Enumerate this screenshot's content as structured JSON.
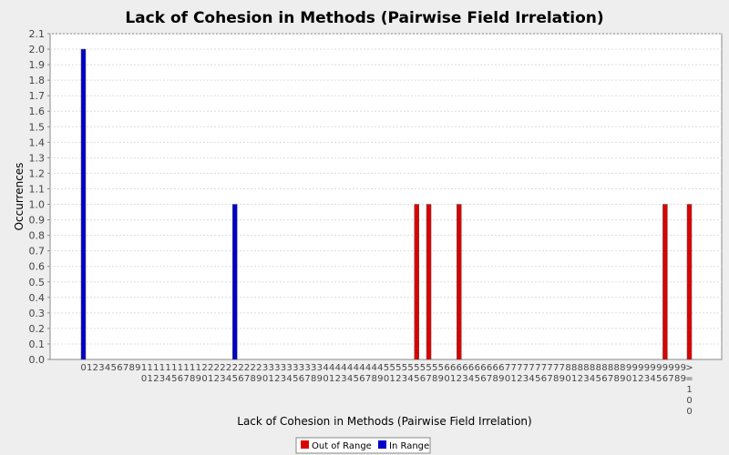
{
  "chart_data": {
    "type": "bar",
    "title": "Lack of Cohesion in Methods (Pairwise Field Irrelation)",
    "xlabel": "Lack of Cohesion in Methods (Pairwise Field Irrelation)",
    "ylabel": "Occurrences",
    "ylim": [
      0,
      2.1
    ],
    "yticks": [
      "0.0",
      "0.1",
      "0.2",
      "0.3",
      "0.4",
      "0.5",
      "0.6",
      "0.7",
      "0.8",
      "0.9",
      "1.0",
      "1.1",
      "1.2",
      "1.3",
      "1.4",
      "1.5",
      "1.6",
      "1.7",
      "1.8",
      "1.9",
      "2.0",
      "2.1"
    ],
    "categories": [
      "0",
      "1",
      "2",
      "3",
      "4",
      "5",
      "6",
      "7",
      "8",
      "9",
      "10",
      "11",
      "12",
      "13",
      "14",
      "15",
      "16",
      "17",
      "18",
      "19",
      "20",
      "21",
      "22",
      "23",
      "24",
      "25",
      "26",
      "27",
      "28",
      "29",
      "30",
      "31",
      "32",
      "33",
      "34",
      "35",
      "36",
      "37",
      "38",
      "39",
      "40",
      "41",
      "42",
      "43",
      "44",
      "45",
      "46",
      "47",
      "48",
      "49",
      "50",
      "51",
      "52",
      "53",
      "54",
      "55",
      "56",
      "57",
      "58",
      "59",
      "60",
      "61",
      "62",
      "63",
      "64",
      "65",
      "66",
      "67",
      "68",
      "69",
      "70",
      "71",
      "72",
      "73",
      "74",
      "75",
      "76",
      "77",
      "78",
      "79",
      "80",
      "81",
      "82",
      "83",
      "84",
      "85",
      "86",
      "87",
      "88",
      "89",
      "90",
      "91",
      "92",
      "93",
      "94",
      "95",
      "96",
      "97",
      "98",
      "99",
      ">=100"
    ],
    "series": [
      {
        "name": "Out of Range",
        "color": "#dd0000",
        "values": [
          0,
          0,
          0,
          0,
          0,
          0,
          0,
          0,
          0,
          0,
          0,
          0,
          0,
          0,
          0,
          0,
          0,
          0,
          0,
          0,
          0,
          0,
          0,
          0,
          0,
          0,
          0,
          0,
          0,
          0,
          0,
          0,
          0,
          0,
          0,
          0,
          0,
          0,
          0,
          0,
          0,
          0,
          0,
          0,
          0,
          0,
          0,
          0,
          0,
          0,
          0,
          0,
          0,
          0,
          0,
          1,
          0,
          1,
          0,
          0,
          0,
          0,
          1,
          0,
          0,
          0,
          0,
          0,
          0,
          0,
          0,
          0,
          0,
          0,
          0,
          0,
          0,
          0,
          0,
          0,
          0,
          0,
          0,
          0,
          0,
          0,
          0,
          0,
          0,
          0,
          0,
          0,
          0,
          0,
          0,
          0,
          1,
          0,
          0,
          0,
          1
        ]
      },
      {
        "name": "In Range",
        "color": "#0000cc",
        "values": [
          2,
          0,
          0,
          0,
          0,
          0,
          0,
          0,
          0,
          0,
          0,
          0,
          0,
          0,
          0,
          0,
          0,
          0,
          0,
          0,
          0,
          0,
          0,
          0,
          0,
          1,
          0,
          0,
          0,
          0,
          0,
          0,
          0,
          0,
          0,
          0,
          0,
          0,
          0,
          0,
          0,
          0,
          0,
          0,
          0,
          0,
          0,
          0,
          0,
          0,
          0,
          0,
          0,
          0,
          0,
          0,
          0,
          0,
          0,
          0,
          0,
          0,
          0,
          0,
          0,
          0,
          0,
          0,
          0,
          0,
          0,
          0,
          0,
          0,
          0,
          0,
          0,
          0,
          0,
          0,
          0,
          0,
          0,
          0,
          0,
          0,
          0,
          0,
          0,
          0,
          0,
          0,
          0,
          0,
          0,
          0,
          0,
          0,
          0,
          0,
          0
        ]
      }
    ],
    "grid": true,
    "legend": "bottom-center"
  }
}
